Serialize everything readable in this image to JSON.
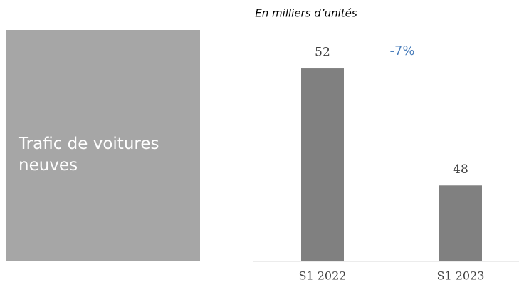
{
  "panel": {
    "text": "Trafic de voitures neuves"
  },
  "chart_data": {
    "type": "bar",
    "subtitle": "En milliers d’unités",
    "annotation": "-7%",
    "categories": [
      "S1 2022",
      "S1 2023"
    ],
    "values": [
      52,
      48
    ],
    "color": "#808080",
    "ylim": [
      45.4,
      53
    ]
  }
}
